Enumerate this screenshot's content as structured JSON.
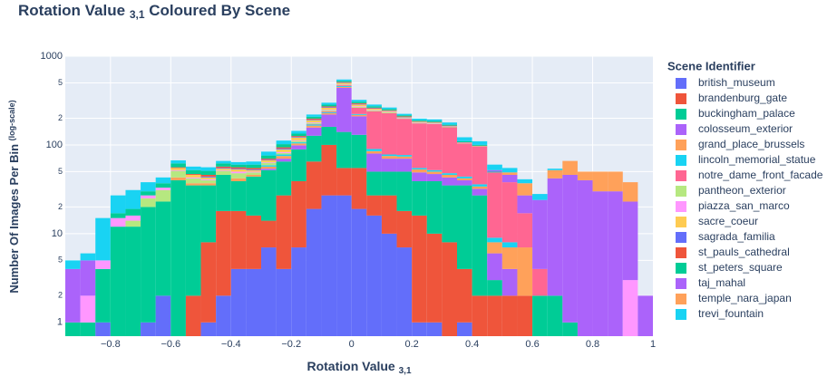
{
  "chart_data": {
    "type": "histogram",
    "title": {
      "text": "Rotation Value",
      "sub": "3,1",
      "rest": "Coloured By Scene"
    },
    "x_label": {
      "text": "Rotation Value",
      "sub": "3,1"
    },
    "y_label": {
      "text": "Number Of Images Per Bin",
      "note": "(log-scale)"
    },
    "legend_title": "Scene Identifier",
    "legend": "right",
    "log_y": true,
    "grid": true,
    "barmode": "stack",
    "bins": [
      -0.95,
      -0.9,
      -0.85,
      -0.8,
      -0.75,
      -0.7,
      -0.65,
      -0.6,
      -0.55,
      -0.5,
      -0.45,
      -0.4,
      -0.35,
      -0.3,
      -0.25,
      -0.2,
      -0.15,
      -0.1,
      -0.05,
      0,
      0.05,
      0.1,
      0.15,
      0.2,
      0.25,
      0.3,
      0.35,
      0.4,
      0.45,
      0.5,
      0.55,
      0.6,
      0.65,
      0.7,
      0.75,
      0.8,
      0.85,
      0.9,
      0.95,
      1
    ],
    "xlim": [
      -0.95,
      1
    ],
    "xticks": [
      {
        "value": -0.8,
        "label": "−0.8"
      },
      {
        "value": -0.6,
        "label": "−0.6"
      },
      {
        "value": -0.4,
        "label": "−0.4"
      },
      {
        "value": -0.2,
        "label": "−0.2"
      },
      0,
      0.2,
      0.4,
      0.6,
      0.8,
      1
    ],
    "ylim": [
      0.7,
      1000
    ],
    "yticks": [
      1000,
      {
        "value": 500,
        "label": "5"
      },
      {
        "value": 200,
        "label": "2"
      },
      100,
      {
        "value": 50,
        "label": "5"
      },
      {
        "value": 20,
        "label": "2"
      },
      10,
      {
        "value": 5,
        "label": "5"
      },
      {
        "value": 2,
        "label": "2"
      },
      1
    ],
    "series": [
      {
        "name": "british_museum",
        "color": "#636efa",
        "values": [
          0,
          0,
          1,
          0,
          0,
          1,
          2,
          0,
          0,
          1,
          2,
          4,
          4,
          7,
          4,
          7,
          19,
          27,
          27,
          19,
          16,
          10,
          7,
          1,
          1,
          0,
          1,
          0,
          0,
          0,
          0,
          0,
          0,
          0,
          0,
          0,
          0,
          0,
          0
        ]
      },
      {
        "name": "brandenburg_gate",
        "color": "#EF553B",
        "values": [
          0,
          0,
          0,
          0,
          0,
          0,
          0,
          0,
          2,
          7,
          16,
          14,
          12,
          7,
          23,
          32,
          46,
          73,
          28,
          36,
          11,
          17,
          11,
          15,
          9,
          8,
          3,
          2,
          2,
          2,
          2,
          0,
          0,
          0,
          0,
          0,
          0,
          0,
          0
        ]
      },
      {
        "name": "buckingham_palace",
        "color": "#00cc96",
        "values": [
          1,
          1,
          3,
          12,
          12,
          19,
          21,
          40,
          33,
          27,
          28,
          21,
          28,
          38,
          38,
          50,
          62,
          60,
          85,
          75,
          23,
          23,
          32,
          23,
          29,
          27,
          31,
          25,
          1,
          0,
          0,
          2,
          2,
          1,
          0,
          0,
          0,
          0,
          0
        ]
      },
      {
        "name": "colosseum_exterior",
        "color": "#ab63fa",
        "values": [
          0,
          0,
          0,
          0,
          0,
          0,
          0,
          0,
          0,
          0,
          0,
          0,
          0,
          2,
          5,
          10,
          30,
          60,
          300,
          80,
          30,
          20,
          20,
          10,
          8,
          8,
          5,
          5,
          3,
          2,
          0,
          0,
          0,
          0,
          0,
          0,
          0,
          0,
          0
        ]
      },
      {
        "name": "grand_place_brussels",
        "color": "#FFA15A",
        "values": [
          0,
          0,
          0,
          0,
          0,
          0,
          0,
          3,
          2,
          2,
          0,
          3,
          2,
          3,
          5,
          5,
          8,
          8,
          10,
          8,
          5,
          5,
          4,
          4,
          3,
          3,
          2,
          2,
          2,
          3,
          5,
          0,
          0,
          0,
          0,
          0,
          0,
          0,
          0
        ]
      },
      {
        "name": "lincoln_memorial_statue",
        "color": "#19d3f3",
        "values": [
          0,
          0,
          0,
          0,
          0,
          0,
          0,
          0,
          0,
          0,
          0,
          0,
          0,
          2,
          3,
          3,
          5,
          5,
          10,
          5,
          5,
          3,
          3,
          2,
          2,
          2,
          2,
          2,
          1,
          1,
          0,
          0,
          0,
          0,
          0,
          0,
          0,
          0,
          0
        ]
      },
      {
        "name": "notre_dame_front_facade",
        "color": "#FF6692",
        "values": [
          0,
          0,
          0,
          0,
          0,
          0,
          0,
          0,
          0,
          0,
          0,
          0,
          0,
          0,
          0,
          0,
          2,
          5,
          10,
          40,
          150,
          150,
          120,
          120,
          120,
          110,
          60,
          60,
          40,
          30,
          10,
          2,
          0,
          0,
          0,
          0,
          0,
          0,
          0
        ]
      },
      {
        "name": "pantheon_exterior",
        "color": "#B6E880",
        "values": [
          0,
          0,
          0,
          0,
          2,
          5,
          8,
          8,
          5,
          3,
          5,
          6,
          3,
          4,
          3,
          4,
          5,
          8,
          8,
          6,
          5,
          5,
          3,
          3,
          2,
          2,
          1,
          1,
          0,
          0,
          0,
          0,
          0,
          0,
          0,
          0,
          0,
          0,
          0
        ]
      },
      {
        "name": "piazza_san_marco",
        "color": "#FF97FF",
        "values": [
          0,
          1,
          1,
          3,
          2,
          2,
          2,
          1,
          1,
          1,
          1,
          2,
          1,
          1,
          2,
          2,
          3,
          4,
          5,
          4,
          3,
          3,
          2,
          2,
          2,
          1,
          1,
          0,
          0,
          0,
          0,
          0,
          0,
          0,
          0,
          0,
          0,
          3,
          0
        ]
      },
      {
        "name": "sacre_coeur",
        "color": "#FECB52",
        "values": [
          0,
          0,
          0,
          0,
          0,
          0,
          0,
          3,
          3,
          2,
          2,
          3,
          2,
          3,
          6,
          8,
          10,
          12,
          15,
          12,
          8,
          5,
          3,
          2,
          2,
          1,
          0,
          0,
          0,
          0,
          0,
          0,
          0,
          0,
          0,
          0,
          0,
          0,
          0
        ]
      },
      {
        "name": "sagrada_familia",
        "color": "#636efa",
        "values": [
          0,
          0,
          0,
          0,
          0,
          0,
          0,
          0,
          0,
          1,
          1,
          1,
          1,
          1,
          2,
          2,
          3,
          4,
          5,
          4,
          3,
          2,
          2,
          1,
          1,
          1,
          0,
          0,
          0,
          0,
          0,
          0,
          0,
          0,
          0,
          0,
          0,
          0,
          0
        ]
      },
      {
        "name": "st_pauls_cathedral",
        "color": "#EF553B",
        "values": [
          0,
          0,
          0,
          0,
          0,
          0,
          0,
          1,
          1,
          2,
          2,
          2,
          2,
          2,
          3,
          3,
          5,
          6,
          8,
          6,
          4,
          3,
          3,
          2,
          2,
          2,
          1,
          1,
          0,
          0,
          0,
          0,
          0,
          0,
          0,
          0,
          0,
          0,
          0
        ]
      },
      {
        "name": "st_peters_square",
        "color": "#00cc96",
        "values": [
          0,
          0,
          0,
          2,
          3,
          3,
          4,
          6,
          5,
          5,
          5,
          4,
          5,
          6,
          8,
          8,
          10,
          12,
          15,
          12,
          10,
          8,
          6,
          5,
          5,
          4,
          3,
          2,
          1,
          0,
          0,
          0,
          0,
          0,
          0,
          0,
          0,
          0,
          0
        ]
      },
      {
        "name": "taj_mahal",
        "color": "#ab63fa",
        "values": [
          3,
          3,
          0,
          0,
          0,
          0,
          0,
          0,
          0,
          0,
          0,
          0,
          0,
          0,
          0,
          0,
          0,
          0,
          0,
          0,
          0,
          0,
          0,
          0,
          0,
          0,
          0,
          0,
          2,
          8,
          10,
          20,
          40,
          45,
          40,
          30,
          30,
          20,
          2
        ]
      },
      {
        "name": "temple_nara_japan",
        "color": "#FFA15A",
        "values": [
          0,
          0,
          0,
          0,
          0,
          0,
          0,
          0,
          0,
          0,
          0,
          0,
          0,
          0,
          0,
          0,
          0,
          0,
          0,
          0,
          0,
          0,
          0,
          0,
          0,
          0,
          0,
          0,
          0,
          3,
          10,
          0,
          10,
          20,
          10,
          20,
          20,
          15,
          0
        ]
      },
      {
        "name": "trevi_fountain",
        "color": "#19d3f3",
        "values": [
          1,
          1,
          10,
          10,
          12,
          8,
          6,
          5,
          5,
          5,
          4,
          4,
          5,
          8,
          10,
          10,
          12,
          15,
          20,
          15,
          12,
          10,
          8,
          8,
          8,
          10,
          12,
          10,
          8,
          6,
          4,
          4,
          2,
          0,
          0,
          0,
          0,
          0,
          0
        ]
      }
    ]
  }
}
